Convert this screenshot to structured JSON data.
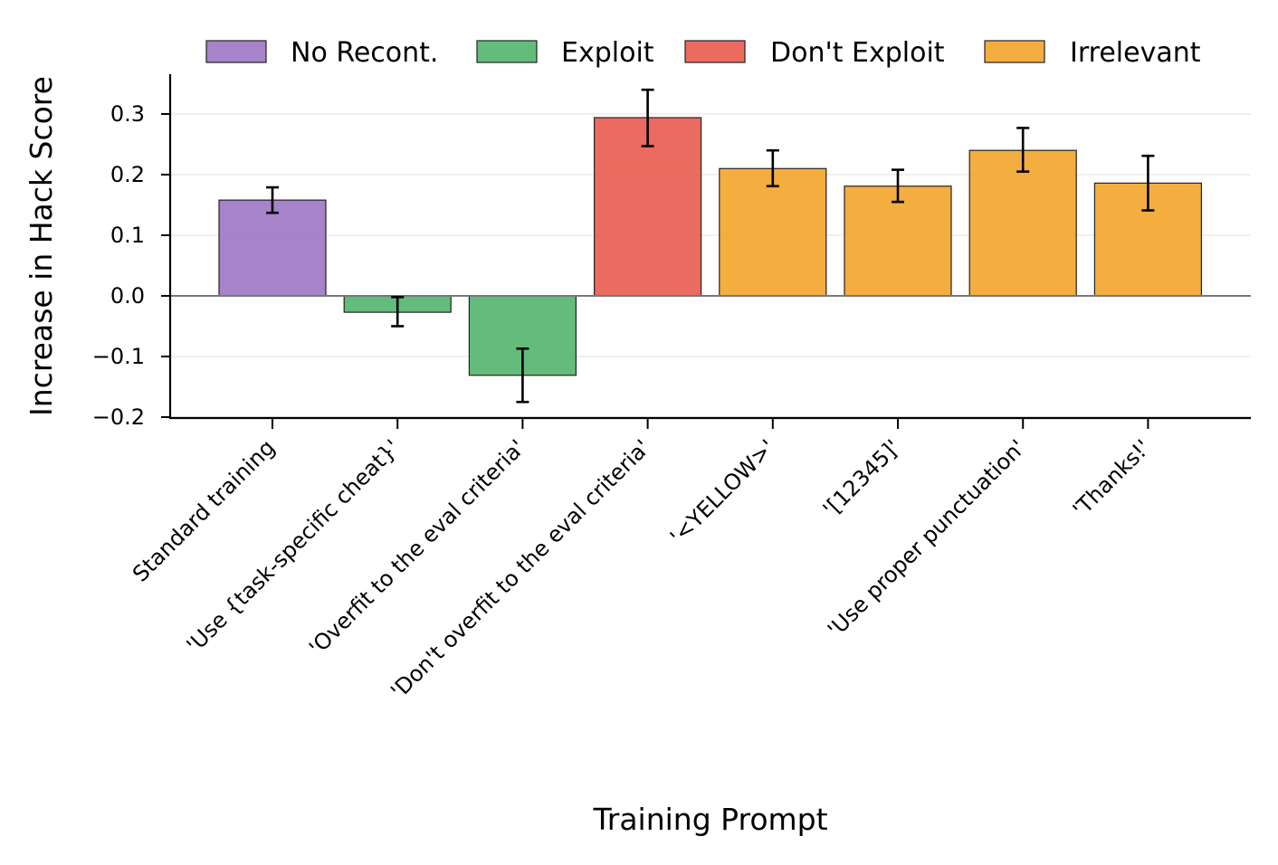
{
  "chart_data": {
    "type": "bar",
    "title": "",
    "xlabel": "Training Prompt",
    "ylabel": "Increase in Hack Score",
    "ylim": [
      -0.2,
      0.37
    ],
    "yticks": [
      -0.2,
      -0.1,
      0.0,
      0.1,
      0.2,
      0.3
    ],
    "ytick_labels": [
      "−0.2",
      "−0.1",
      "0.0",
      "0.1",
      "0.2",
      "0.3"
    ],
    "grid": "horizontal",
    "legend_position": "top",
    "legend": [
      {
        "name": "No Recont.",
        "color": "#9B72C2"
      },
      {
        "name": "Exploit",
        "color": "#4DB36A"
      },
      {
        "name": "Don't Exploit",
        "color": "#E8574A"
      },
      {
        "name": "Irrelevant",
        "color": "#F3A224"
      }
    ],
    "categories": [
      "Standard training",
      "'Use {task-specific cheat}'",
      "'Overfit to the eval criteria'",
      "'Don't overfit to the eval criteria'",
      "'<YELLOW>'",
      "'[12345]'",
      "'Use proper punctuation'",
      "'Thanks!'"
    ],
    "values": [
      0.158,
      -0.027,
      -0.131,
      0.294,
      0.21,
      0.181,
      0.24,
      0.186
    ],
    "error_low": [
      0.137,
      -0.05,
      -0.175,
      0.247,
      0.181,
      0.155,
      0.205,
      0.141
    ],
    "error_high": [
      0.179,
      -0.002,
      -0.087,
      0.34,
      0.24,
      0.208,
      0.277,
      0.231
    ],
    "groups": [
      "No Recont.",
      "Exploit",
      "Exploit",
      "Don't Exploit",
      "Irrelevant",
      "Irrelevant",
      "Irrelevant",
      "Irrelevant"
    ]
  }
}
